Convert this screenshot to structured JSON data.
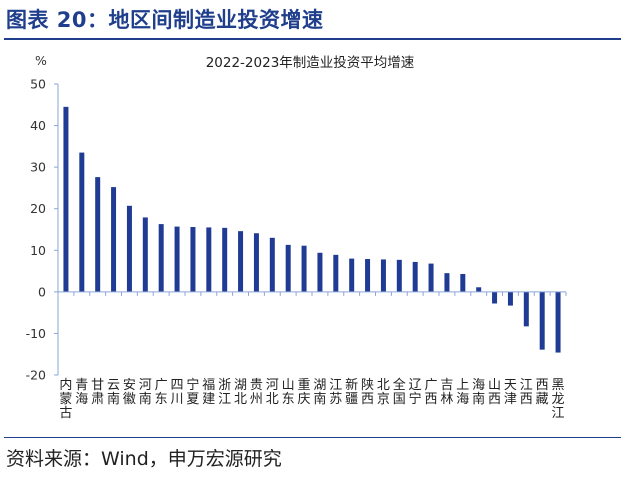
{
  "figure_title": "图表 20：地区间制造业投资增速",
  "source": "资料来源：Wind，申万宏源研究",
  "colors": {
    "accent": "#1f3e8c",
    "bar": "#1f3b93",
    "axis": "#8aa6d6"
  },
  "chart_data": {
    "type": "bar",
    "title": "2022-2023年制造业投资平均增速",
    "unit_label": "%",
    "ylim": [
      -20,
      50
    ],
    "yticks": [
      -20,
      -10,
      0,
      10,
      20,
      30,
      40,
      50
    ],
    "categories": [
      "内蒙古",
      "青海",
      "甘肃",
      "云南",
      "安徽",
      "河南",
      "广东",
      "四川",
      "宁夏",
      "福建",
      "浙江",
      "湖北",
      "贵州",
      "河北",
      "山东",
      "重庆",
      "湖南",
      "江苏",
      "新疆",
      "陕西",
      "北京",
      "全国",
      "辽宁",
      "广西",
      "吉林",
      "上海",
      "海南",
      "山西",
      "天津",
      "江西",
      "西藏",
      "黑龙江"
    ],
    "values": [
      44.5,
      33.5,
      27.6,
      25.2,
      20.7,
      17.9,
      16.3,
      15.7,
      15.6,
      15.5,
      15.4,
      14.6,
      14.1,
      13.0,
      11.3,
      11.1,
      9.4,
      8.9,
      8.0,
      7.9,
      7.8,
      7.7,
      7.2,
      6.8,
      4.5,
      4.3,
      1.1,
      -2.8,
      -3.3,
      -8.3,
      -13.9,
      -14.6
    ],
    "grid": false
  }
}
